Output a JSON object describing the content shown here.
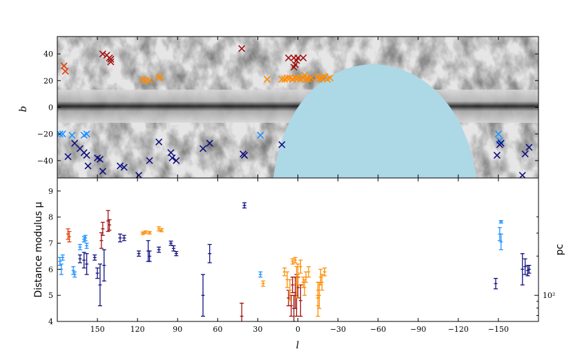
{
  "chart_data": [
    {
      "type": "scatter",
      "panel": "top",
      "xlabel": "l",
      "ylabel": "b",
      "xlim": [
        180,
        -180
      ],
      "ylim": [
        -53,
        53
      ],
      "yticks": [
        40,
        20,
        0,
        -20,
        -40
      ],
      "background": "grayscale Galactic dust map with Galactic plane dark band at b≈0; light-blue region marks sky not covered (southern Dec limit)",
      "excluded_region_color": "#add8e6",
      "series": [
        {
          "name": "dark red",
          "color": "#a01010",
          "marker": "x",
          "points": [
            [
              146,
              40
            ],
            [
              143,
              39
            ],
            [
              141,
              37
            ],
            [
              140,
              36
            ],
            [
              140,
              34
            ],
            [
              42,
              44
            ],
            [
              7,
              37
            ],
            [
              3,
              37
            ],
            [
              0,
              37
            ],
            [
              -4,
              37
            ],
            [
              1,
              35
            ],
            [
              2,
              32
            ],
            [
              3,
              30
            ]
          ]
        },
        {
          "name": "red-orange",
          "color": "#e2400f",
          "marker": "x",
          "points": [
            [
              175,
              31
            ],
            [
              174,
              27
            ]
          ]
        },
        {
          "name": "orange",
          "color": "#ff8c00",
          "marker": "x",
          "points": [
            [
              116,
              21
            ],
            [
              114,
              20
            ],
            [
              111,
              20
            ],
            [
              104,
              22
            ],
            [
              103,
              23
            ],
            [
              23,
              21
            ],
            [
              12,
              21
            ],
            [
              10,
              21
            ],
            [
              8,
              22
            ],
            [
              6,
              22
            ],
            [
              4,
              21
            ],
            [
              2,
              22
            ],
            [
              0,
              22
            ],
            [
              -2,
              21
            ],
            [
              -4,
              22
            ],
            [
              -6,
              21
            ],
            [
              -8,
              21
            ],
            [
              -10,
              22
            ],
            [
              -15,
              23
            ],
            [
              -16,
              21
            ],
            [
              -18,
              22
            ],
            [
              -20,
              23
            ],
            [
              -22,
              21
            ],
            [
              -24,
              22
            ],
            [
              -5,
              24
            ]
          ]
        },
        {
          "name": "light blue",
          "color": "#1e90ff",
          "marker": "x",
          "points": [
            [
              178,
              -20
            ],
            [
              176,
              -20
            ],
            [
              169,
              -21
            ],
            [
              160,
              -21
            ],
            [
              158,
              -20
            ],
            [
              28,
              -21
            ],
            [
              -150,
              -20
            ],
            [
              -151,
              -25
            ]
          ]
        },
        {
          "name": "dark blue",
          "color": "#101080",
          "marker": "x",
          "points": [
            [
              172,
              -37
            ],
            [
              167,
              -27
            ],
            [
              163,
              -31
            ],
            [
              160,
              -34
            ],
            [
              158,
              -36
            ],
            [
              157,
              -44
            ],
            [
              150,
              -38
            ],
            [
              148,
              -39
            ],
            [
              146,
              -48
            ],
            [
              133,
              -44
            ],
            [
              130,
              -45
            ],
            [
              119,
              -51
            ],
            [
              111,
              -40
            ],
            [
              104,
              -26
            ],
            [
              95,
              -34
            ],
            [
              94,
              -38
            ],
            [
              91,
              -40
            ],
            [
              71,
              -31
            ],
            [
              66,
              -27
            ],
            [
              41,
              -35
            ],
            [
              40,
              -36
            ],
            [
              12,
              -28
            ],
            [
              -149,
              -36
            ],
            [
              -151,
              -28
            ],
            [
              -152,
              -27
            ],
            [
              -168,
              -51
            ],
            [
              -170,
              -35
            ],
            [
              -173,
              -30
            ]
          ]
        }
      ]
    },
    {
      "type": "scatter",
      "panel": "bottom",
      "error_bars": true,
      "xlabel": "l",
      "ylabel": "Distance modulus μ",
      "ylabel_right": "pc",
      "xlim": [
        180,
        -180
      ],
      "ylim": [
        4,
        9.5
      ],
      "xticks": [
        150,
        120,
        90,
        60,
        30,
        0,
        -30,
        -60,
        -90,
        -120,
        -150
      ],
      "xtick_labels": [
        "150",
        "120",
        "90",
        "60",
        "30",
        "0",
        "−30",
        "−60",
        "−90",
        "−120",
        "−150"
      ],
      "yticks": [
        4,
        5,
        6,
        7,
        8,
        9
      ],
      "right_tick_labels": [
        "10²"
      ],
      "series": [
        {
          "name": "dark red",
          "color": "#a01010",
          "points": [
            [
              142,
              7.85,
              0.4
            ],
            [
              141,
              7.7,
              0.2
            ],
            [
              146,
              7.55,
              0.25
            ],
            [
              147,
              7.1,
              0.3
            ],
            [
              42,
              4.2,
              0.5
            ],
            [
              7,
              4.9,
              0.3
            ],
            [
              5,
              4.6,
              0.4
            ],
            [
              2,
              5.1,
              0.6
            ],
            [
              0,
              5.3,
              0.4
            ],
            [
              -2,
              4.8,
              0.6
            ],
            [
              4,
              5.4,
              0.3
            ],
            [
              1,
              5.0,
              0.8
            ],
            [
              3,
              4.5,
              0.5
            ]
          ]
        },
        {
          "name": "red-orange",
          "color": "#e2400f",
          "points": [
            [
              172,
              7.35,
              0.2
            ],
            [
              171,
              7.25,
              0.2
            ]
          ]
        },
        {
          "name": "orange",
          "color": "#ff8c00",
          "points": [
            [
              116,
              7.38,
              0.05
            ],
            [
              114,
              7.42,
              0.05
            ],
            [
              111,
              7.4,
              0.05
            ],
            [
              104,
              7.55,
              0.08
            ],
            [
              102,
              7.5,
              0.06
            ],
            [
              26,
              5.45,
              0.1
            ],
            [
              10,
              5.9,
              0.15
            ],
            [
              8,
              5.6,
              0.3
            ],
            [
              6,
              5.2,
              0.4
            ],
            [
              4,
              6.3,
              0.1
            ],
            [
              2,
              6.35,
              0.1
            ],
            [
              1,
              5.5,
              0.6
            ],
            [
              0,
              5.8,
              0.4
            ],
            [
              -2,
              6.1,
              0.25
            ],
            [
              -4,
              5.5,
              0.2
            ],
            [
              -5,
              5.3,
              0.3
            ],
            [
              -6,
              5.7,
              0.2
            ],
            [
              -8,
              5.9,
              0.2
            ],
            [
              -15,
              5.2,
              0.3
            ],
            [
              -16,
              5.0,
              0.5
            ],
            [
              -17,
              5.7,
              0.3
            ],
            [
              -18,
              5.5,
              0.3
            ],
            [
              -20,
              5.9,
              0.15
            ],
            [
              -15,
              4.6,
              0.4
            ]
          ]
        },
        {
          "name": "light blue",
          "color": "#1e90ff",
          "points": [
            [
              178,
              6.3,
              0.15
            ],
            [
              177,
              6.0,
              0.2
            ],
            [
              176,
              6.45,
              0.1
            ],
            [
              168,
              5.95,
              0.15
            ],
            [
              167,
              5.8,
              0.1
            ],
            [
              163,
              6.85,
              0.1
            ],
            [
              160,
              7.15,
              0.1
            ],
            [
              159,
              7.2,
              0.1
            ],
            [
              158,
              6.9,
              0.1
            ],
            [
              28,
              5.8,
              0.1
            ],
            [
              -152,
              7.82,
              0.05
            ],
            [
              -151,
              7.35,
              0.25
            ],
            [
              -152,
              7.05,
              0.3
            ]
          ]
        },
        {
          "name": "dark blue",
          "color": "#101080",
          "points": [
            [
              163,
              6.4,
              0.15
            ],
            [
              160,
              6.35,
              0.3
            ],
            [
              158,
              6.2,
              0.4
            ],
            [
              152,
              6.45,
              0.1
            ],
            [
              150,
              5.85,
              0.2
            ],
            [
              148,
              5.4,
              0.8
            ],
            [
              145,
              6.15,
              0.6
            ],
            [
              133,
              7.2,
              0.15
            ],
            [
              130,
              7.2,
              0.1
            ],
            [
              119,
              6.6,
              0.1
            ],
            [
              112,
              6.7,
              0.4
            ],
            [
              111,
              6.5,
              0.2
            ],
            [
              104,
              6.75,
              0.1
            ],
            [
              95,
              7.0,
              0.08
            ],
            [
              93,
              6.8,
              0.1
            ],
            [
              91,
              6.6,
              0.08
            ],
            [
              71,
              5.0,
              0.8
            ],
            [
              66,
              6.6,
              0.35
            ],
            [
              40,
              8.45,
              0.1
            ],
            [
              -148,
              5.45,
              0.2
            ],
            [
              -168,
              6.0,
              0.6
            ],
            [
              -170,
              6.1,
              0.3
            ],
            [
              -172,
              5.95,
              0.2
            ],
            [
              -173,
              6.0,
              0.15
            ]
          ]
        }
      ]
    }
  ]
}
